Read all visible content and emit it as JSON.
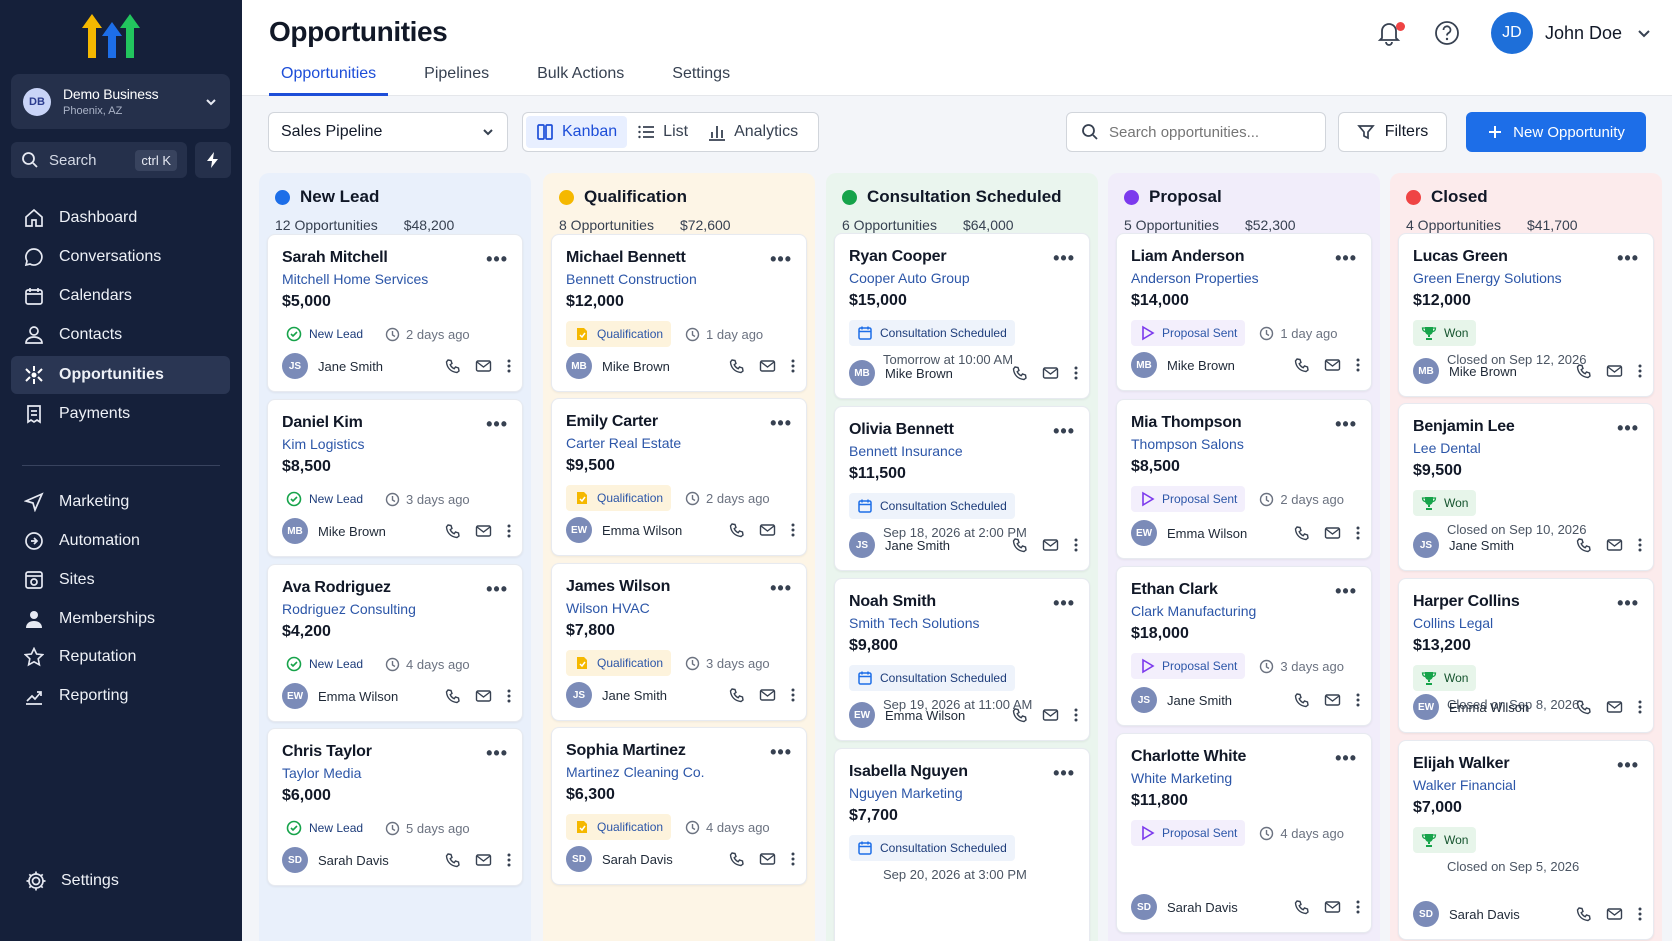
{
  "sidebar": {
    "account": {
      "initials": "DB",
      "name": "Demo Business",
      "location": "Phoenix, AZ"
    },
    "search": {
      "label": "Search",
      "shortcut": "ctrl K"
    },
    "items": [
      {
        "label": "Dashboard",
        "icon": "home-icon"
      },
      {
        "label": "Conversations",
        "icon": "chat-icon"
      },
      {
        "label": "Calendars",
        "icon": "calendar-icon"
      },
      {
        "label": "Contacts",
        "icon": "contacts-icon"
      },
      {
        "label": "Opportunities",
        "icon": "opportunities-icon",
        "active": true
      },
      {
        "label": "Payments",
        "icon": "payments-icon"
      },
      {
        "label": "Marketing",
        "icon": "send-icon"
      },
      {
        "label": "Automation",
        "icon": "automation-icon"
      },
      {
        "label": "Sites",
        "icon": "sites-icon"
      },
      {
        "label": "Memberships",
        "icon": "member-icon"
      },
      {
        "label": "Reputation",
        "icon": "star-icon"
      },
      {
        "label": "Reporting",
        "icon": "reporting-icon"
      }
    ],
    "settings": "Settings"
  },
  "header": {
    "title": "Opportunities",
    "tabs": [
      "Opportunities",
      "Pipelines",
      "Bulk Actions",
      "Settings"
    ],
    "user": {
      "initials": "JD",
      "name": "John Doe"
    }
  },
  "toolbar": {
    "pipeline": "Sales Pipeline",
    "views": [
      "Kanban",
      "List",
      "Analytics"
    ],
    "search_placeholder": "Search opportunities...",
    "filters": "Filters",
    "new_button": "New Opportunity"
  },
  "colors": {
    "accent": "#1d6ee8",
    "new_lead": "#1d6ee8",
    "qualification": "#f5b800",
    "consultation": "#16a34a",
    "proposal": "#7c3aed",
    "closed": "#ef4444"
  },
  "columns": [
    {
      "title": "New Lead",
      "count": "12 Opportunities",
      "value": "$48,200",
      "cards": [
        {
          "name": "Sarah Mitchell",
          "company": "Mitchell Home Services",
          "amount": "$5,000",
          "status": "New Lead",
          "ago": "2 days ago",
          "owner_initials": "JS",
          "owner": "Jane Smith"
        },
        {
          "name": "Daniel Kim",
          "company": "Kim Logistics",
          "amount": "$8,500",
          "status": "New Lead",
          "ago": "3 days ago",
          "owner_initials": "MB",
          "owner": "Mike Brown"
        },
        {
          "name": "Ava Rodriguez",
          "company": "Rodriguez Consulting",
          "amount": "$4,200",
          "status": "New Lead",
          "ago": "4 days ago",
          "owner_initials": "EW",
          "owner": "Emma Wilson"
        },
        {
          "name": "Chris Taylor",
          "company": "Taylor Media",
          "amount": "$6,000",
          "status": "New Lead",
          "ago": "5 days ago",
          "owner_initials": "SD",
          "owner": "Sarah Davis"
        }
      ]
    },
    {
      "title": "Qualification",
      "count": "8 Opportunities",
      "value": "$72,600",
      "cards": [
        {
          "name": "Michael Bennett",
          "company": "Bennett Construction",
          "amount": "$12,000",
          "status": "Qualification",
          "ago": "1 day ago",
          "owner_initials": "MB",
          "owner": "Mike Brown"
        },
        {
          "name": "Emily Carter",
          "company": "Carter Real Estate",
          "amount": "$9,500",
          "status": "Qualification",
          "ago": "2 days ago",
          "owner_initials": "EW",
          "owner": "Emma Wilson"
        },
        {
          "name": "James Wilson",
          "company": "Wilson HVAC",
          "amount": "$7,800",
          "status": "Qualification",
          "ago": "3 days ago",
          "owner_initials": "JS",
          "owner": "Jane Smith"
        },
        {
          "name": "Sophia Martinez",
          "company": "Martinez Cleaning Co.",
          "amount": "$6,300",
          "status": "Qualification",
          "ago": "4 days ago",
          "owner_initials": "SD",
          "owner": "Sarah Davis"
        }
      ]
    },
    {
      "title": "Consultation Scheduled",
      "count": "6 Opportunities",
      "value": "$64,000",
      "cards": [
        {
          "name": "Ryan Cooper",
          "company": "Cooper Auto Group",
          "amount": "$15,000",
          "status": "Consultation Scheduled",
          "when": "Tomorrow at 10:00 AM",
          "owner_initials": "MB",
          "owner": "Mike Brown"
        },
        {
          "name": "Olivia Bennett",
          "company": "Bennett Insurance",
          "amount": "$11,500",
          "status": "Consultation Scheduled",
          "when": "Sep 18, 2026 at 2:00 PM",
          "owner_initials": "JS",
          "owner": "Jane Smith"
        },
        {
          "name": "Noah Smith",
          "company": "Smith Tech Solutions",
          "amount": "$9,800",
          "status": "Consultation Scheduled",
          "when": "Sep 19, 2026 at 11:00 AM",
          "owner_initials": "EW",
          "owner": "Emma Wilson"
        },
        {
          "name": "Isabella Nguyen",
          "company": "Nguyen Marketing",
          "amount": "$7,700",
          "status": "Consultation Scheduled",
          "when": "Sep 20, 2026 at 3:00 PM"
        }
      ]
    },
    {
      "title": "Proposal",
      "count": "5 Opportunities",
      "value": "$52,300",
      "cards": [
        {
          "name": "Liam Anderson",
          "company": "Anderson Properties",
          "amount": "$14,000",
          "status": "Proposal Sent",
          "ago": "1 day ago",
          "owner_initials": "MB",
          "owner": "Mike Brown"
        },
        {
          "name": "Mia Thompson",
          "company": "Thompson Salons",
          "amount": "$8,500",
          "status": "Proposal Sent",
          "ago": "2 days ago",
          "owner_initials": "EW",
          "owner": "Emma Wilson"
        },
        {
          "name": "Ethan Clark",
          "company": "Clark Manufacturing",
          "amount": "$18,000",
          "status": "Proposal Sent",
          "ago": "3 days ago",
          "owner_initials": "JS",
          "owner": "Jane Smith"
        },
        {
          "name": "Charlotte White",
          "company": "White Marketing",
          "amount": "$11,800",
          "status": "Proposal Sent",
          "ago": "4 days ago",
          "owner_initials": "SD",
          "owner": "Sarah Davis"
        }
      ]
    },
    {
      "title": "Closed",
      "count": "4 Opportunities",
      "value": "$41,700",
      "cards": [
        {
          "name": "Lucas Green",
          "company": "Green Energy Solutions",
          "amount": "$12,000",
          "status": "Won",
          "when": "Closed on Sep 12, 2026",
          "owner_initials": "MB",
          "owner": "Mike Brown"
        },
        {
          "name": "Benjamin Lee",
          "company": "Lee Dental",
          "amount": "$9,500",
          "status": "Won",
          "when": "Closed on Sep 10, 2026",
          "owner_initials": "JS",
          "owner": "Jane Smith"
        },
        {
          "name": "Harper Collins",
          "company": "Collins Legal",
          "amount": "$13,200",
          "status": "Won",
          "when": "Closed on Sep 8, 2026",
          "owner_initials": "EW",
          "owner": "Emma Wilson"
        },
        {
          "name": "Elijah Walker",
          "company": "Walker Financial",
          "amount": "$7,000",
          "status": "Won",
          "when": "Closed on Sep 5, 2026",
          "owner_initials": "SD",
          "owner": "Sarah Davis"
        }
      ]
    }
  ]
}
